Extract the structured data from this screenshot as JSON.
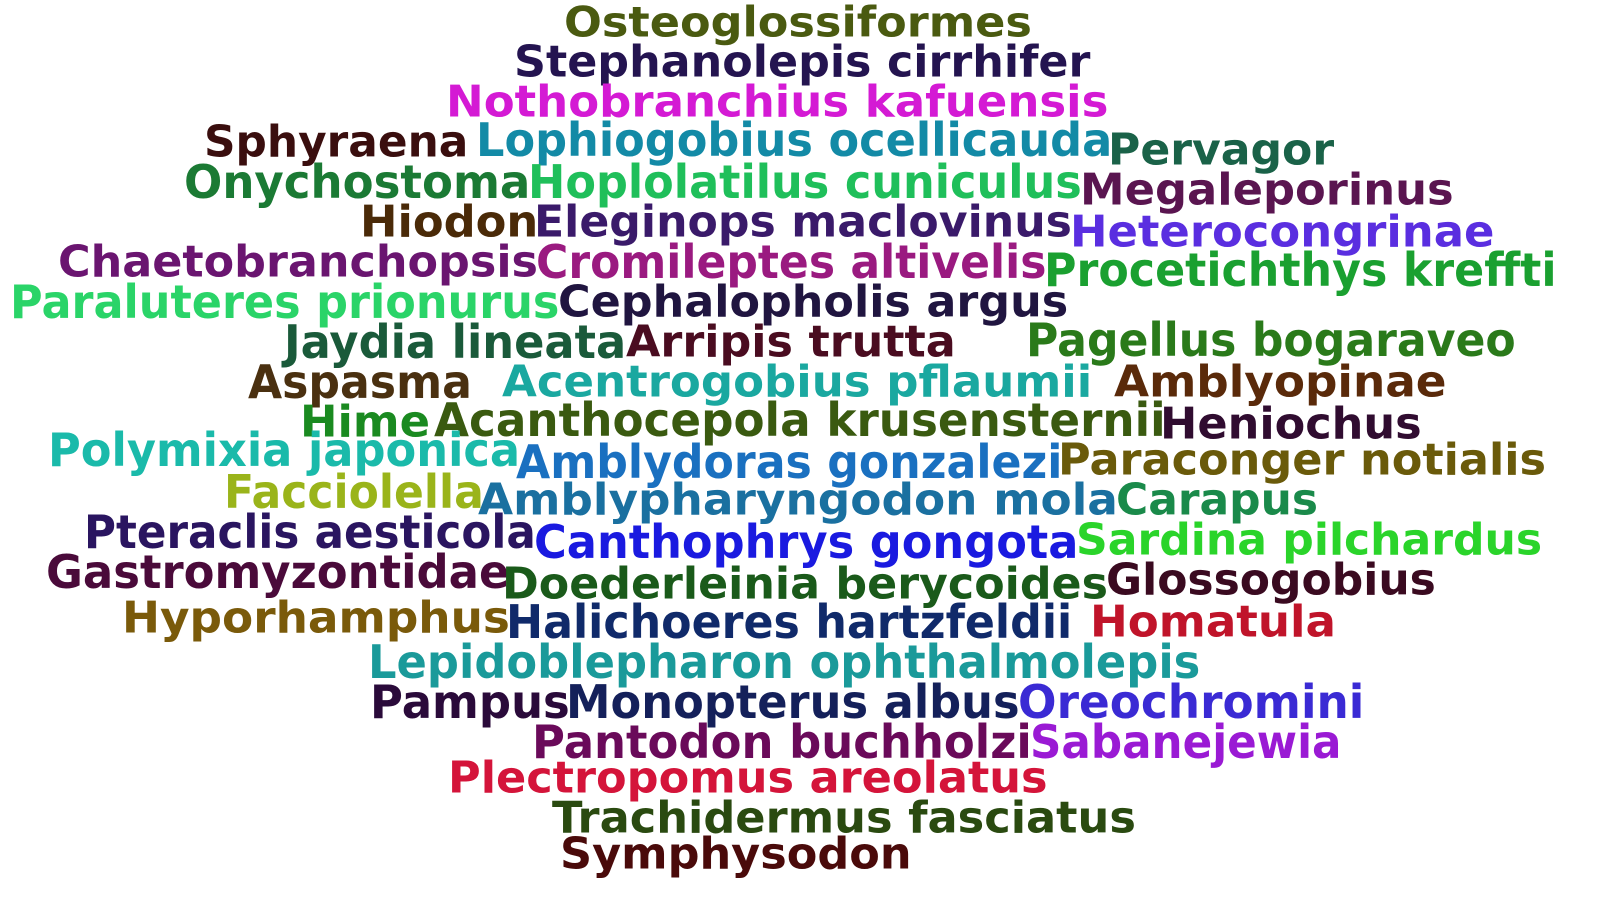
{
  "words": [
    {
      "text": "Osteoglossiformes",
      "color": "#4a5a10"
    },
    {
      "text": "Stephanolepis cirrhifer",
      "color": "#241450"
    },
    {
      "text": "Nothobranchius kafuensis",
      "color": "#d41ad4"
    },
    {
      "text": "Sphyraena",
      "color": "#3a0e0e"
    },
    {
      "text": "Lophiogobius ocellicauda",
      "color": "#138aa6"
    },
    {
      "text": "Pervagor",
      "color": "#1a6248"
    },
    {
      "text": "Onychostoma",
      "color": "#1b7a34"
    },
    {
      "text": "Hoplolatilus cuniculus",
      "color": "#1fbf5a"
    },
    {
      "text": "Megaleporinus",
      "color": "#5a1550"
    },
    {
      "text": "Hiodon",
      "color": "#4a2a08"
    },
    {
      "text": "Eleginops maclovinus",
      "color": "#3a1a6a"
    },
    {
      "text": "Heterocongrinae",
      "color": "#5a2ee0"
    },
    {
      "text": "Chaetobranchopsis",
      "color": "#6a1570"
    },
    {
      "text": "Cromileptes altivelis",
      "color": "#9a1a80"
    },
    {
      "text": "Procetichthys kreffti",
      "color": "#1aa030"
    },
    {
      "text": "Paraluteres prionurus",
      "color": "#2ad468"
    },
    {
      "text": "Cephalopholis argus",
      "color": "#201540"
    },
    {
      "text": "Jaydia lineata",
      "color": "#1a5a3a"
    },
    {
      "text": "Arripis trutta",
      "color": "#4a0c20"
    },
    {
      "text": "Pagellus bogaraveo",
      "color": "#2a7a1a"
    },
    {
      "text": "Aspasma",
      "color": "#4a3010"
    },
    {
      "text": "Acentrogobius pflaumii",
      "color": "#1aa8a0"
    },
    {
      "text": "Amblyopinae",
      "color": "#5a2a0a"
    },
    {
      "text": "Hime",
      "color": "#1a8a20"
    },
    {
      "text": "Acanthocepola krusensternii",
      "color": "#3a5a10"
    },
    {
      "text": "Heniochus",
      "color": "#300c30"
    },
    {
      "text": "Polymixia japonica",
      "color": "#1abaaa"
    },
    {
      "text": "Amblydoras gonzalezi",
      "color": "#1a70c0"
    },
    {
      "text": "Paraconger notialis",
      "color": "#6a5a0a"
    },
    {
      "text": "Facciolella",
      "color": "#9ab41a"
    },
    {
      "text": "Amblypharyngodon mola",
      "color": "#1a70a0"
    },
    {
      "text": "Carapus",
      "color": "#1a8a4a"
    },
    {
      "text": "Pteraclis aesticola",
      "color": "#2a1560"
    },
    {
      "text": "Canthophrys gongota",
      "color": "#1a1ae0"
    },
    {
      "text": "Sardina pilchardus",
      "color": "#2ad42a"
    },
    {
      "text": "Gastromyzontidae",
      "color": "#4a0a3a"
    },
    {
      "text": "Doederleinia berycoides",
      "color": "#1a5a1a"
    },
    {
      "text": "Glossogobius",
      "color": "#3a0a20"
    },
    {
      "text": "Hyporhamphus",
      "color": "#7a5a0a"
    },
    {
      "text": "Halichoeres hartzfeldii",
      "color": "#102a6a"
    },
    {
      "text": "Homatula",
      "color": "#c0142a"
    },
    {
      "text": "Lepidoblepharon ophthalmolepis",
      "color": "#1a9a9a"
    },
    {
      "text": "Pampus",
      "color": "#2a0a3a"
    },
    {
      "text": "Monopterus albus",
      "color": "#14205a"
    },
    {
      "text": "Oreochromini",
      "color": "#3a2ad4"
    },
    {
      "text": "Pantodon buchholzi",
      "color": "#6a0a5a"
    },
    {
      "text": "Sabanejewia",
      "color": "#9a1ad4"
    },
    {
      "text": "Plectropomus areolatus",
      "color": "#d4143a"
    },
    {
      "text": "Trachidermus fasciatus",
      "color": "#2a4a10"
    },
    {
      "text": "Symphysodon",
      "color": "#4a0a0a"
    }
  ]
}
